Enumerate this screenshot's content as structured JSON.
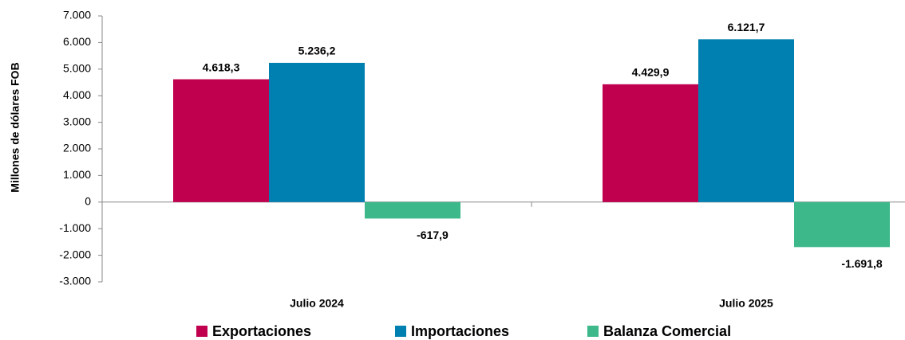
{
  "chart_data": {
    "type": "bar",
    "y_label": "Millones de dólares FOB",
    "categories": [
      "Julio 2024",
      "Julio 2025"
    ],
    "series": [
      {
        "name": "Exportaciones",
        "color": "#c0004f",
        "values": [
          4618.3,
          4429.9
        ],
        "value_labels": [
          "4.618,3",
          "4.429,9"
        ]
      },
      {
        "name": "Importaciones",
        "color": "#0080b0",
        "values": [
          5236.2,
          6121.7
        ],
        "value_labels": [
          "5.236,2",
          "6.121,7"
        ]
      },
      {
        "name": "Balanza Comercial",
        "color": "#3cb88a",
        "values": [
          -617.9,
          -1691.8
        ],
        "value_labels": [
          "-617,9",
          "-1.691,8"
        ]
      }
    ],
    "ylim": [
      -3000,
      7000
    ],
    "yticks": [
      {
        "value": 7000,
        "label": "7.000"
      },
      {
        "value": 6000,
        "label": "6.000"
      },
      {
        "value": 5000,
        "label": "5.000"
      },
      {
        "value": 4000,
        "label": "4.000"
      },
      {
        "value": 3000,
        "label": "3.000"
      },
      {
        "value": 2000,
        "label": "2.000"
      },
      {
        "value": 1000,
        "label": "1.000"
      },
      0,
      {
        "value": -1000,
        "label": "-1.000"
      },
      {
        "value": -2000,
        "label": "-2.000"
      },
      {
        "value": -3000,
        "label": "-3.000"
      }
    ],
    "grid": false,
    "legend": "bottom"
  }
}
